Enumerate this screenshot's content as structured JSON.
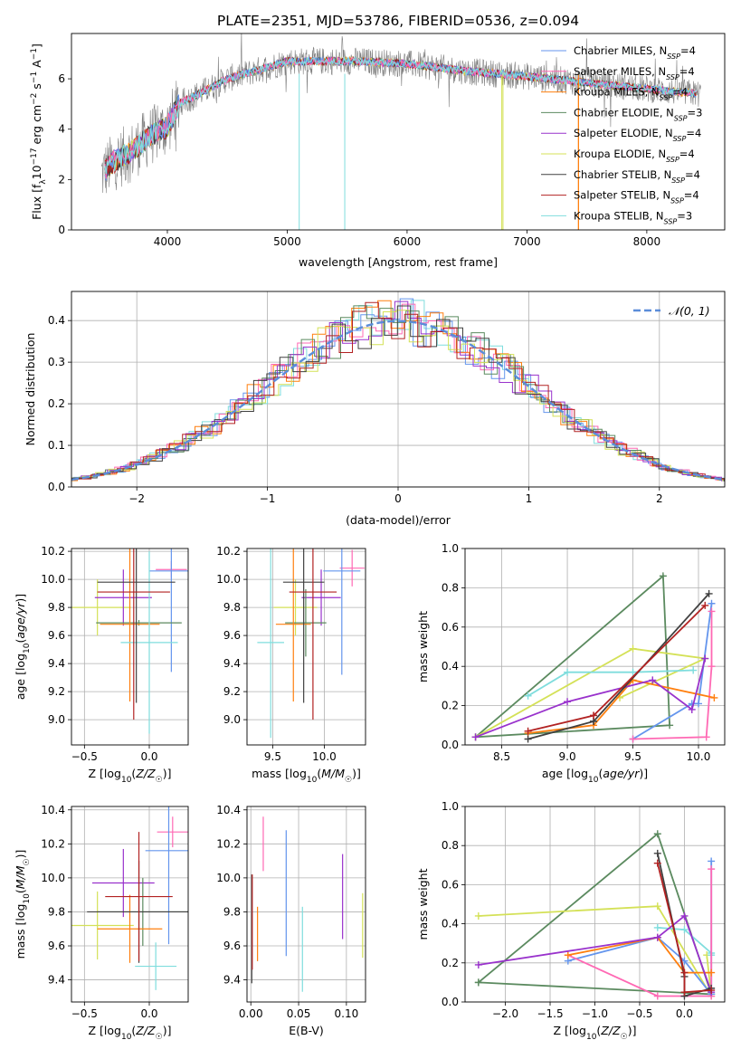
{
  "figure_title": "PLATE=2351, MJD=53786, FIBERID=0536, z=0.094",
  "legend_entries": [
    {
      "name": "Chabrier MILES, N<sub>SSP</sub>=4",
      "text": "Chabrier MILES, N",
      "sub": "SSP",
      "suffix": "=4",
      "color": "#6495ed"
    },
    {
      "name": "Salpeter MILES",
      "text": "Salpeter MILES, N",
      "sub": "SSP",
      "suffix": "=4",
      "color": "#ff69b4"
    },
    {
      "name": "Kroupa MILES",
      "text": "Kroupa MILES, N",
      "sub": "SSP",
      "suffix": "=4",
      "color": "#ff7f0e"
    },
    {
      "name": "Chabrier ELODIE",
      "text": "Chabrier ELODIE, N",
      "sub": "SSP",
      "suffix": "=3",
      "color": "#5b8a5f"
    },
    {
      "name": "Salpeter ELODIE",
      "text": "Salpeter ELODIE, N",
      "sub": "SSP",
      "suffix": "=4",
      "color": "#9932cc"
    },
    {
      "name": "Kroupa ELODIE",
      "text": "Kroupa ELODIE, N",
      "sub": "SSP",
      "suffix": "=4",
      "color": "#d4e157"
    },
    {
      "name": "Chabrier STELIB",
      "text": "Chabrier STELIB, N",
      "sub": "SSP",
      "suffix": "=4",
      "color": "#404040"
    },
    {
      "name": "Salpeter STELIB",
      "text": "Salpeter STELIB, N",
      "sub": "SSP",
      "suffix": "=4",
      "color": "#b22222"
    },
    {
      "name": "Kroupa STELIB",
      "text": "Kroupa STELIB, N",
      "sub": "SSP",
      "suffix": "=3",
      "color": "#7fdddd"
    }
  ],
  "chart_data": [
    {
      "id": "spectrum",
      "type": "line",
      "xlabel": "wavelength [Angstrom, rest frame]",
      "ylabel": "Flux [f_λ10^-17 erg cm^-2 s^-1 A^-1]",
      "xlim": [
        3200,
        8650
      ],
      "ylim": [
        0,
        7.8
      ],
      "xticks": [
        4000,
        5000,
        6000,
        7000,
        8000
      ],
      "yticks": [
        0,
        2,
        4,
        6
      ],
      "continuum": {
        "x": [
          3450,
          3550,
          3700,
          3850,
          4000,
          4100,
          4300,
          4500,
          4800,
          5000,
          5300,
          5600,
          6000,
          6500,
          7000,
          7400,
          7800,
          8200,
          8450
        ],
        "y": [
          2.2,
          2.7,
          3.1,
          3.7,
          4.1,
          5.0,
          5.5,
          6.0,
          6.4,
          6.7,
          6.7,
          6.7,
          6.6,
          6.3,
          6.1,
          5.9,
          5.7,
          5.5,
          5.4
        ]
      }
    },
    {
      "id": "residuals",
      "type": "histogram",
      "xlabel": "(data-model)/error",
      "ylabel": "Normed distribution",
      "xlim": [
        -2.5,
        2.5
      ],
      "ylim": [
        0,
        0.47
      ],
      "xticks": [
        -2,
        -1,
        0,
        1,
        2
      ],
      "yticks": [
        0.0,
        0.1,
        0.2,
        0.3,
        0.4
      ],
      "legend": "𝒩(0, 1)",
      "normal_curve": {
        "mean": 0,
        "sigma": 1
      }
    },
    {
      "id": "age_vs_Z",
      "type": "errorbar",
      "xlabel": "Z [log10(Z/Z☉)]",
      "ylabel": "age [log10(age/yr)]",
      "xlim": [
        -0.6,
        0.3
      ],
      "ylim": [
        8.82,
        10.22
      ],
      "xticks": [
        -0.5,
        0.0
      ],
      "yticks": [
        9.0,
        9.2,
        9.4,
        9.6,
        9.8,
        10.0,
        10.2
      ],
      "points": [
        {
          "x": 0.17,
          "y": 10.07,
          "xerr": 0.12,
          "yerr": 0.06,
          "c": 1
        },
        {
          "x": 0.17,
          "y": 10.06,
          "xerr": 0.17,
          "yerr": 0.72,
          "c": 0
        },
        {
          "x": -0.4,
          "y": 9.8,
          "xerr": 0.26,
          "yerr": 0.2,
          "c": 5
        },
        {
          "x": -0.2,
          "y": 9.87,
          "xerr": 0.22,
          "yerr": 0.2,
          "c": 4
        },
        {
          "x": -0.08,
          "y": 9.69,
          "xerr": 0.33,
          "yerr": 0.02,
          "c": 3
        },
        {
          "x": -0.15,
          "y": 9.68,
          "xerr": 0.23,
          "yerr": 0.55,
          "c": 2
        },
        {
          "x": 0.0,
          "y": 9.55,
          "xerr": 0.22,
          "yerr": 0.65,
          "c": 8
        },
        {
          "x": -0.1,
          "y": 9.98,
          "xerr": 0.3,
          "yerr": 0.86,
          "c": 6
        },
        {
          "x": -0.12,
          "y": 9.91,
          "xerr": 0.28,
          "yerr": 0.91,
          "c": 7
        }
      ]
    },
    {
      "id": "age_vs_mass",
      "type": "errorbar",
      "xlabel": "mass [log10(M/M☉)]",
      "ylabel": "",
      "xlim": [
        9.25,
        10.4
      ],
      "ylim": [
        8.82,
        10.22
      ],
      "xticks": [
        9.5,
        10.0
      ],
      "yticks": [
        9.0,
        9.2,
        9.4,
        9.6,
        9.8,
        10.0,
        10.2
      ],
      "points": [
        {
          "x": 10.27,
          "y": 10.08,
          "xerr": 0.12,
          "yerr": 0.13,
          "c": 1
        },
        {
          "x": 10.17,
          "y": 10.06,
          "xerr": 0.18,
          "yerr": 0.74,
          "c": 0
        },
        {
          "x": 9.72,
          "y": 9.8,
          "xerr": 0.21,
          "yerr": 0.2,
          "c": 5
        },
        {
          "x": 9.97,
          "y": 9.87,
          "xerr": 0.19,
          "yerr": 0.2,
          "c": 4
        },
        {
          "x": 9.82,
          "y": 9.69,
          "xerr": 0.2,
          "yerr": 0.24,
          "c": 3
        },
        {
          "x": 9.7,
          "y": 9.68,
          "xerr": 0.17,
          "yerr": 0.55,
          "c": 2
        },
        {
          "x": 9.48,
          "y": 9.55,
          "xerr": 0.13,
          "yerr": 0.68,
          "c": 8
        },
        {
          "x": 9.8,
          "y": 9.98,
          "xerr": 0.2,
          "yerr": 0.86,
          "c": 6
        },
        {
          "x": 9.89,
          "y": 9.91,
          "xerr": 0.23,
          "yerr": 0.91,
          "c": 7
        }
      ]
    },
    {
      "id": "weight_vs_age",
      "type": "line",
      "xlabel": "age [log10(age/yr)]",
      "ylabel": "mass weight",
      "xlim": [
        8.22,
        10.2
      ],
      "ylim": [
        0.0,
        1.0
      ],
      "xticks": [
        8.5,
        9.0,
        9.5,
        10.0
      ],
      "yticks": [
        0.0,
        0.2,
        0.4,
        0.6,
        0.8,
        1.0
      ],
      "series": [
        {
          "c": 3,
          "x": [
            8.3,
            9.73,
            9.78,
            8.3
          ],
          "y": [
            0.04,
            0.86,
            0.1,
            0.04
          ]
        },
        {
          "c": 5,
          "x": [
            8.3,
            9.5,
            10.05,
            9.4
          ],
          "y": [
            0.04,
            0.49,
            0.44,
            0.24
          ]
        },
        {
          "c": 8,
          "x": [
            8.7,
            9.0,
            9.5,
            9.96
          ],
          "y": [
            0.25,
            0.37,
            0.37,
            0.38
          ]
        },
        {
          "c": 0,
          "x": [
            9.5,
            9.95,
            10.0,
            10.1
          ],
          "y": [
            0.03,
            0.21,
            0.21,
            0.72
          ]
        },
        {
          "c": 1,
          "x": [
            9.5,
            10.06,
            10.1,
            10.1
          ],
          "y": [
            0.03,
            0.04,
            0.4,
            0.68
          ]
        },
        {
          "c": 2,
          "x": [
            8.7,
            9.2,
            9.5,
            10.12
          ],
          "y": [
            0.06,
            0.1,
            0.33,
            0.24
          ]
        },
        {
          "c": 4,
          "x": [
            8.3,
            9.0,
            9.65,
            9.95,
            10.05
          ],
          "y": [
            0.04,
            0.22,
            0.33,
            0.18,
            0.44
          ]
        },
        {
          "c": 6,
          "x": [
            8.7,
            9.2,
            10.08,
            9.2
          ],
          "y": [
            0.03,
            0.12,
            0.77,
            0.12
          ]
        },
        {
          "c": 7,
          "x": [
            8.7,
            9.2,
            10.05,
            9.2
          ],
          "y": [
            0.07,
            0.15,
            0.71,
            0.15
          ]
        }
      ]
    },
    {
      "id": "mass_vs_Z",
      "type": "errorbar",
      "xlabel": "Z [log10(Z/Z☉)]",
      "ylabel": "mass [log10(M/M☉)]",
      "xlim": [
        -0.6,
        0.3
      ],
      "ylim": [
        9.27,
        10.42
      ],
      "xticks": [
        -0.5,
        0.0
      ],
      "yticks": [
        9.4,
        9.6,
        9.8,
        10.0,
        10.2,
        10.4
      ],
      "points": [
        {
          "x": 0.18,
          "y": 10.27,
          "xerr": 0.12,
          "yerr": 0.09,
          "c": 1
        },
        {
          "x": 0.15,
          "y": 10.16,
          "xerr": 0.18,
          "yerr": 0.55,
          "c": 0
        },
        {
          "x": -0.4,
          "y": 9.72,
          "xerr": 0.28,
          "yerr": 0.2,
          "c": 5
        },
        {
          "x": -0.2,
          "y": 9.97,
          "xerr": 0.24,
          "yerr": 0.2,
          "c": 4
        },
        {
          "x": -0.05,
          "y": 9.8,
          "xerr": 0.35,
          "yerr": 0.2,
          "c": 3
        },
        {
          "x": -0.15,
          "y": 9.7,
          "xerr": 0.25,
          "yerr": 0.2,
          "c": 2
        },
        {
          "x": 0.05,
          "y": 9.48,
          "xerr": 0.16,
          "yerr": 0.14,
          "c": 8
        },
        {
          "x": -0.08,
          "y": 9.8,
          "xerr": 0.4,
          "yerr": 0.3,
          "c": 6
        },
        {
          "x": -0.08,
          "y": 9.89,
          "xerr": 0.26,
          "yerr": 0.38,
          "c": 7
        }
      ]
    },
    {
      "id": "mass_vs_EBV",
      "type": "errorbar",
      "xlabel": "E(B-V)",
      "ylabel": "",
      "xlim": [
        -0.004,
        0.12
      ],
      "ylim": [
        9.27,
        10.42
      ],
      "xticks": [
        0.0,
        0.05,
        0.1
      ],
      "yticks": [
        9.4,
        9.6,
        9.8,
        10.0,
        10.2,
        10.4
      ],
      "points": [
        {
          "x": 0.013,
          "y": 10.2,
          "xerr": 0,
          "yerr": 0.16,
          "c": 1
        },
        {
          "x": 0.037,
          "y": 9.91,
          "xerr": 0,
          "yerr": 0.37,
          "c": 0
        },
        {
          "x": 0.117,
          "y": 9.72,
          "xerr": 0,
          "yerr": 0.19,
          "c": 5
        },
        {
          "x": 0.096,
          "y": 9.89,
          "xerr": 0,
          "yerr": 0.25,
          "c": 4
        },
        {
          "x": 0.054,
          "y": 9.58,
          "xerr": 0,
          "yerr": 0.25,
          "c": 8
        },
        {
          "x": 0.007,
          "y": 9.67,
          "xerr": 0,
          "yerr": 0.16,
          "c": 2
        },
        {
          "x": 0.001,
          "y": 9.7,
          "xerr": 0,
          "yerr": 0.32,
          "c": 6
        },
        {
          "x": 0.0015,
          "y": 9.74,
          "xerr": 0,
          "yerr": 0.28,
          "c": 7
        }
      ]
    },
    {
      "id": "weight_vs_Z",
      "type": "line",
      "xlabel": "Z [log10(Z/Z☉)]",
      "ylabel": "mass weight",
      "xlim": [
        -2.45,
        0.45
      ],
      "ylim": [
        0.0,
        1.0
      ],
      "xticks": [
        -2.0,
        -1.5,
        -1.0,
        -0.5,
        0.0
      ],
      "yticks": [
        0.0,
        0.2,
        0.4,
        0.6,
        0.8,
        1.0
      ],
      "series": [
        {
          "c": 3,
          "x": [
            -2.3,
            -0.3,
            0.3,
            -2.3
          ],
          "y": [
            0.1,
            0.86,
            0.04,
            0.1
          ]
        },
        {
          "c": 5,
          "x": [
            -2.3,
            -0.3,
            0.3,
            0.25
          ],
          "y": [
            0.44,
            0.49,
            0.03,
            0.24
          ]
        },
        {
          "c": 8,
          "x": [
            -0.3,
            0.0,
            0.3,
            0.3
          ],
          "y": [
            0.38,
            0.37,
            0.25,
            0.24
          ]
        },
        {
          "c": 0,
          "x": [
            -1.3,
            -0.3,
            0.0,
            0.3,
            0.3
          ],
          "y": [
            0.21,
            0.33,
            0.21,
            0.04,
            0.72
          ]
        },
        {
          "c": 1,
          "x": [
            -1.3,
            -0.3,
            0.3,
            0.3
          ],
          "y": [
            0.24,
            0.03,
            0.03,
            0.68
          ]
        },
        {
          "c": 2,
          "x": [
            -1.3,
            -0.3,
            0.0,
            0.3
          ],
          "y": [
            0.24,
            0.33,
            0.15,
            0.15
          ]
        },
        {
          "c": 4,
          "x": [
            -2.3,
            -0.3,
            0.0,
            0.3
          ],
          "y": [
            0.19,
            0.33,
            0.44,
            0.05
          ]
        },
        {
          "c": 6,
          "x": [
            -0.3,
            0.0,
            0.0,
            0.3
          ],
          "y": [
            0.76,
            0.13,
            0.03,
            0.07
          ]
        },
        {
          "c": 7,
          "x": [
            -0.3,
            0.0,
            0.0,
            0.3
          ],
          "y": [
            0.71,
            0.15,
            0.05,
            0.06
          ]
        }
      ]
    }
  ]
}
